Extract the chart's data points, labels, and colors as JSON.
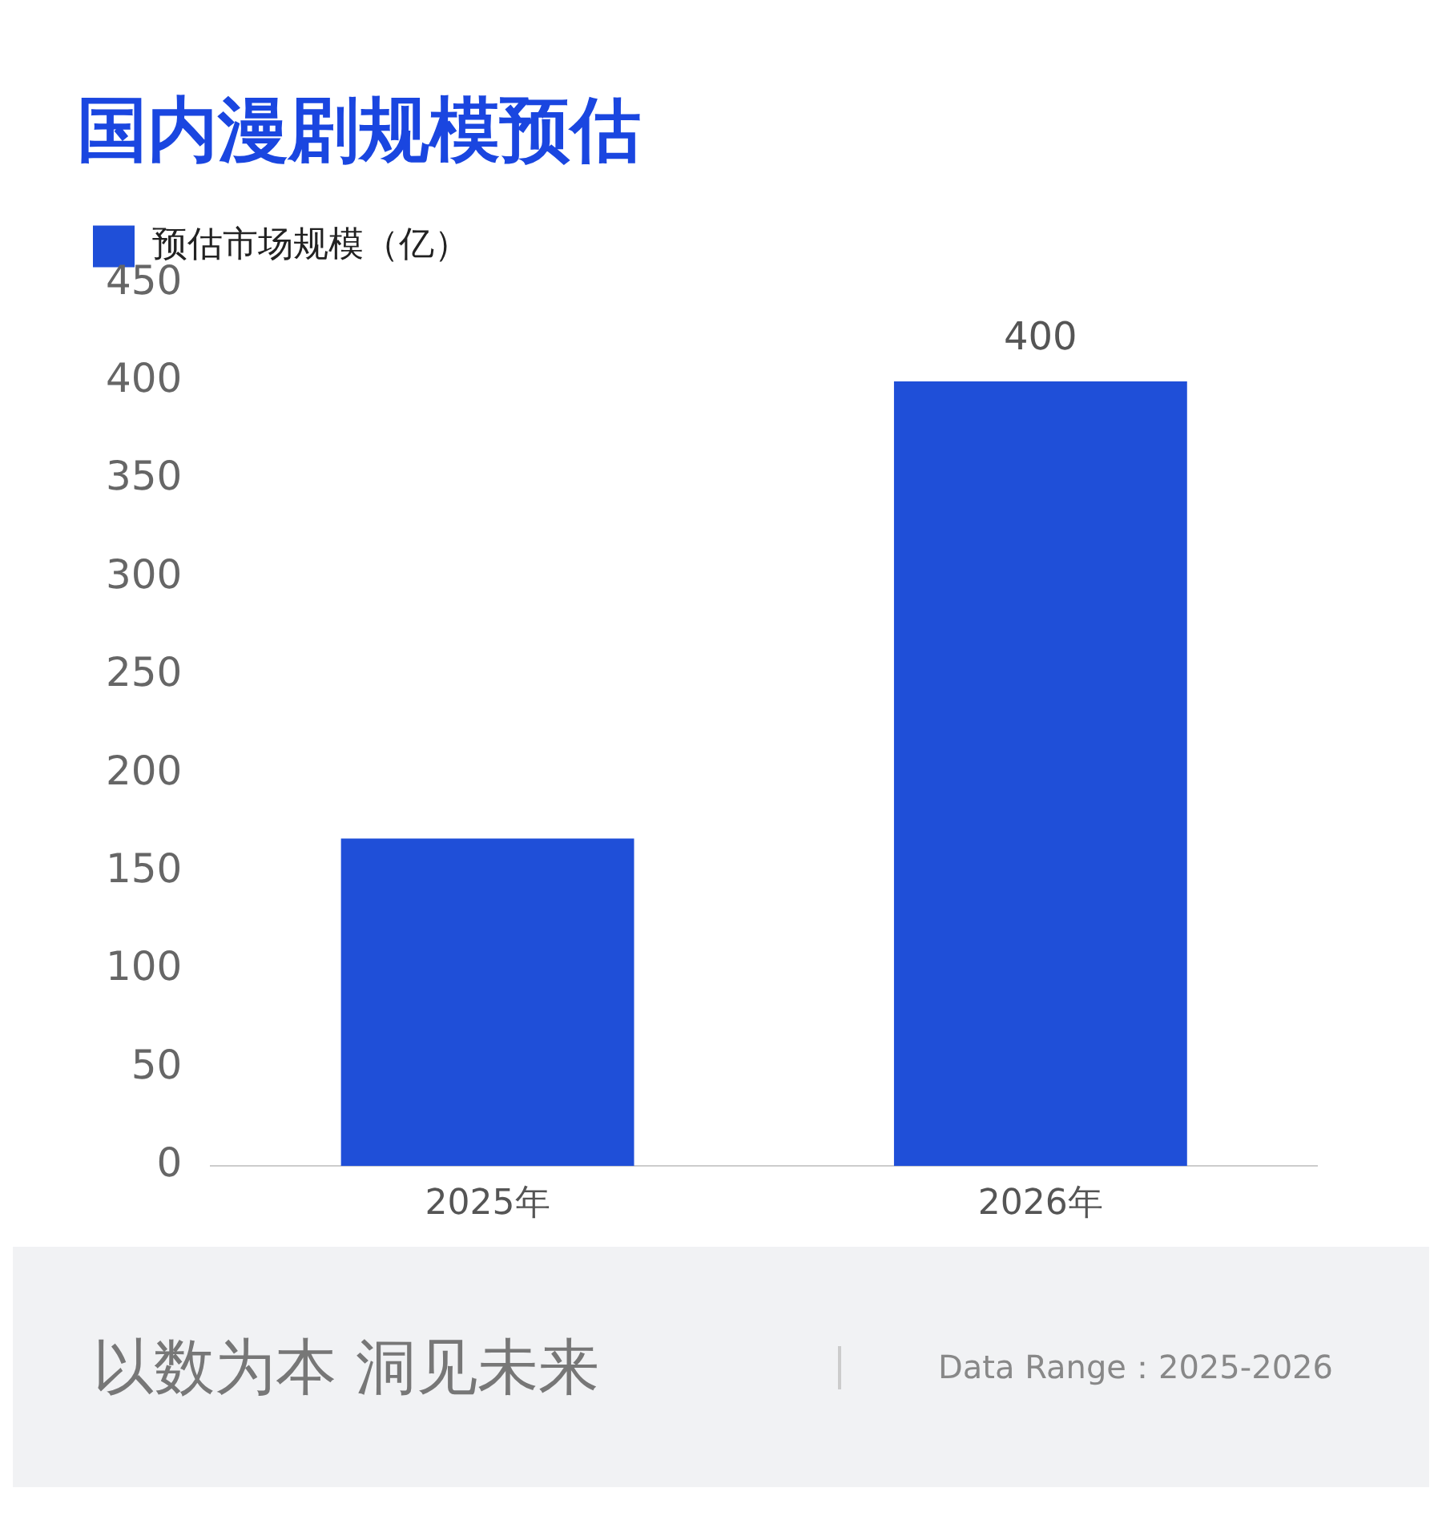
{
  "chart_data": {
    "type": "bar",
    "title": "国内漫剧规模预估",
    "categories": [
      "2025年",
      "2026年"
    ],
    "series": [
      {
        "name": "预估市场规模（亿）",
        "color": "#1f4fd8",
        "values": [
          167,
          400
        ],
        "value_labels": [
          null,
          "400"
        ]
      }
    ],
    "ylim": [
      0,
      450
    ],
    "yticks": [
      0,
      50,
      100,
      150,
      200,
      250,
      300,
      350,
      400,
      450
    ],
    "grid": false,
    "legend": "top left",
    "annotations": [
      "以数为本 洞见未来",
      "Data Range：2025-2026"
    ]
  }
}
